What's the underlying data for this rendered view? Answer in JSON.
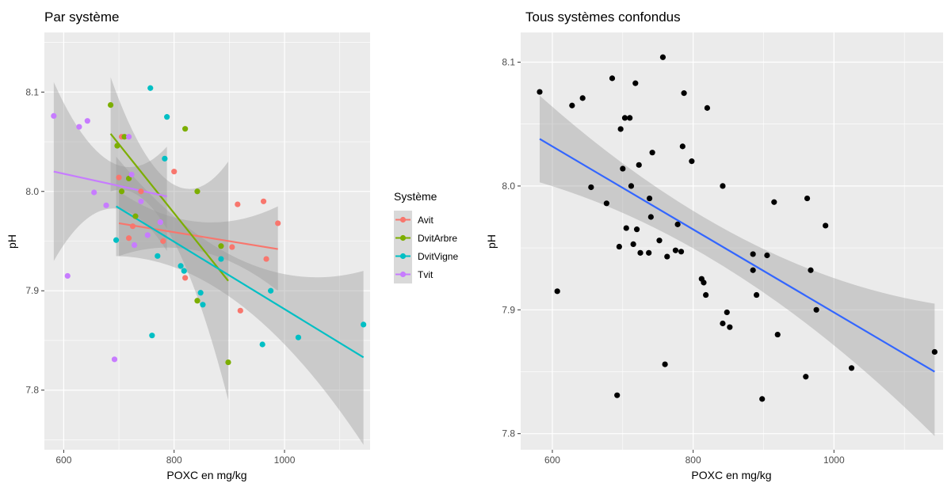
{
  "chart_data": [
    {
      "type": "scatter",
      "title": "Par système",
      "xlabel": "POXC en mg/kg",
      "ylabel": "pH",
      "xlim": [
        565,
        1155
      ],
      "ylim": [
        7.74,
        8.16
      ],
      "x_ticks": [
        600,
        800,
        1000
      ],
      "y_ticks": [
        7.8,
        7.9,
        8.0,
        8.1
      ],
      "x_tick_labels": [
        "600",
        "800",
        "1000"
      ],
      "y_tick_labels": [
        "7.8",
        "7.9",
        "8.0",
        "8.1"
      ],
      "grid": true,
      "legend": {
        "title": "Système",
        "placement": "right"
      },
      "series": [
        {
          "name": "Avit",
          "color": "#F8766D",
          "points": [
            [
              700,
              8.014
            ],
            [
              705,
              8.055
            ],
            [
              718,
              7.953
            ],
            [
              725,
              7.965
            ],
            [
              740,
              8.0
            ],
            [
              780,
              7.95
            ],
            [
              800,
              8.02
            ],
            [
              820,
              7.913
            ],
            [
              915,
              7.987
            ],
            [
              920,
              7.88
            ],
            [
              905,
              7.944
            ],
            [
              962,
              7.99
            ],
            [
              967,
              7.932
            ],
            [
              988,
              7.968
            ]
          ],
          "fit": {
            "x": [
              700,
              988
            ],
            "y": [
              7.968,
              7.942
            ]
          },
          "band": {
            "upper": [
              8.0,
              7.985
            ],
            "lower": [
              7.935,
              7.9
            ]
          }
        },
        {
          "name": "DvitArbre",
          "color": "#7CAE00",
          "points": [
            [
              685,
              8.087
            ],
            [
              697,
              8.046
            ],
            [
              705,
              8.0
            ],
            [
              710,
              8.055
            ],
            [
              718,
              8.013
            ],
            [
              730,
              7.975
            ],
            [
              820,
              8.063
            ],
            [
              842,
              8.0
            ],
            [
              842,
              7.89
            ],
            [
              885,
              7.945
            ],
            [
              898,
              7.828
            ]
          ],
          "fit": {
            "x": [
              685,
              898
            ],
            "y": [
              8.058,
              7.91
            ]
          },
          "band": {
            "upper": [
              8.115,
              8.03
            ],
            "lower": [
              8.0,
              7.79
            ]
          }
        },
        {
          "name": "DvitVigne",
          "color": "#00BFC4",
          "points": [
            [
              695,
              7.951
            ],
            [
              757,
              8.104
            ],
            [
              760,
              7.855
            ],
            [
              787,
              8.075
            ],
            [
              783,
              8.033
            ],
            [
              770,
              7.935
            ],
            [
              812,
              7.925
            ],
            [
              818,
              7.92
            ],
            [
              848,
              7.898
            ],
            [
              852,
              7.886
            ],
            [
              885,
              7.932
            ],
            [
              960,
              7.846
            ],
            [
              975,
              7.9
            ],
            [
              1025,
              7.853
            ],
            [
              1143,
              7.866
            ]
          ],
          "fit": {
            "x": [
              695,
              1143
            ],
            "y": [
              7.985,
              7.833
            ]
          },
          "band": {
            "upper": [
              8.035,
              7.92
            ],
            "lower": [
              7.935,
              7.745
            ]
          }
        },
        {
          "name": "Tvit",
          "color": "#C77CFF",
          "points": [
            [
              582,
              8.076
            ],
            [
              607,
              7.915
            ],
            [
              628,
              8.065
            ],
            [
              643,
              8.071
            ],
            [
              655,
              7.999
            ],
            [
              677,
              7.986
            ],
            [
              692,
              7.831
            ],
            [
              718,
              8.055
            ],
            [
              723,
              8.017
            ],
            [
              728,
              7.946
            ],
            [
              740,
              7.99
            ],
            [
              752,
              7.956
            ],
            [
              775,
              7.969
            ]
          ],
          "fit": {
            "x": [
              582,
              787
            ],
            "y": [
              8.02,
              7.995
            ]
          },
          "band": {
            "upper": [
              8.11,
              8.045
            ],
            "lower": [
              7.93,
              7.94
            ]
          }
        }
      ]
    },
    {
      "type": "scatter",
      "title": "Tous systèmes confondus",
      "xlabel": "POXC en mg/kg",
      "ylabel": "pH",
      "xlim": [
        555,
        1155
      ],
      "ylim": [
        7.787,
        8.124
      ],
      "x_ticks": [
        600,
        800,
        1000
      ],
      "y_ticks": [
        7.8,
        7.9,
        8.0,
        8.1
      ],
      "x_tick_labels": [
        "600",
        "800",
        "1000"
      ],
      "y_tick_labels": [
        "7.8",
        "7.9",
        "8.0",
        "8.1"
      ],
      "grid": true,
      "point_color": "#000000",
      "line_color": "#3366FF",
      "points": [
        [
          582,
          8.076
        ],
        [
          607,
          7.915
        ],
        [
          628,
          8.065
        ],
        [
          643,
          8.071
        ],
        [
          655,
          7.999
        ],
        [
          677,
          7.986
        ],
        [
          685,
          8.087
        ],
        [
          692,
          7.831
        ],
        [
          695,
          7.951
        ],
        [
          697,
          8.046
        ],
        [
          700,
          8.014
        ],
        [
          703,
          8.055
        ],
        [
          705,
          7.966
        ],
        [
          710,
          8.055
        ],
        [
          712,
          8.0
        ],
        [
          715,
          7.953
        ],
        [
          718,
          8.083
        ],
        [
          720,
          7.965
        ],
        [
          723,
          8.017
        ],
        [
          725,
          7.946
        ],
        [
          737,
          7.946
        ],
        [
          738,
          7.99
        ],
        [
          740,
          7.975
        ],
        [
          742,
          8.027
        ],
        [
          752,
          7.956
        ],
        [
          757,
          8.104
        ],
        [
          760,
          7.856
        ],
        [
          763,
          7.943
        ],
        [
          775,
          7.948
        ],
        [
          778,
          7.969
        ],
        [
          783,
          7.947
        ],
        [
          785,
          8.032
        ],
        [
          787,
          8.075
        ],
        [
          798,
          8.02
        ],
        [
          812,
          7.925
        ],
        [
          815,
          7.922
        ],
        [
          818,
          7.912
        ],
        [
          820,
          8.063
        ],
        [
          842,
          8.0
        ],
        [
          842,
          7.889
        ],
        [
          848,
          7.898
        ],
        [
          852,
          7.886
        ],
        [
          885,
          7.932
        ],
        [
          885,
          7.945
        ],
        [
          890,
          7.912
        ],
        [
          898,
          7.828
        ],
        [
          905,
          7.944
        ],
        [
          915,
          7.987
        ],
        [
          920,
          7.88
        ],
        [
          960,
          7.846
        ],
        [
          962,
          7.99
        ],
        [
          967,
          7.932
        ],
        [
          975,
          7.9
        ],
        [
          988,
          7.968
        ],
        [
          1025,
          7.853
        ],
        [
          1143,
          7.866
        ]
      ],
      "fit": {
        "x": [
          582,
          1143
        ],
        "y": [
          8.038,
          7.85
        ]
      },
      "band": {
        "upper": [
          8.073,
          7.905
        ],
        "lower": [
          8.003,
          7.798
        ]
      }
    }
  ]
}
